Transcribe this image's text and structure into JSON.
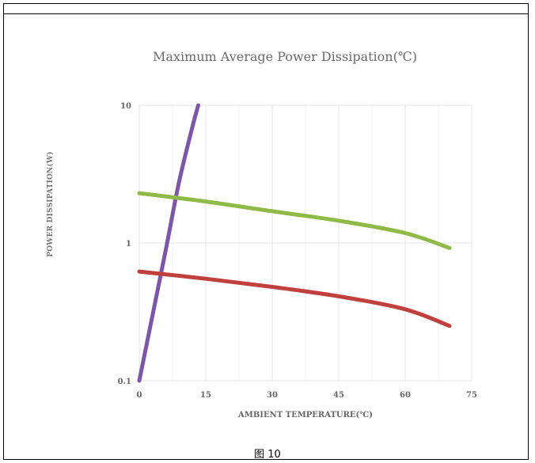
{
  "chart_data": {
    "type": "line",
    "title": "Maximum  Average Power Dissipation(℃)",
    "xlabel": "AMBIENT TEMPERATURE(℃)",
    "ylabel": "POWER DISSIPATION(W)",
    "x_ticks": [
      "0",
      "15",
      "30",
      "45",
      "60",
      "75"
    ],
    "y_ticks": [
      "0.1",
      "1",
      "10"
    ],
    "xlim": [
      0,
      75
    ],
    "ylim": [
      0.1,
      10
    ],
    "yscale": "log",
    "grid": true,
    "series": [
      {
        "color": "#7d56a8",
        "x": [
          0,
          3,
          6,
          9,
          12,
          13.3
        ],
        "y": [
          0.1,
          0.3,
          0.9,
          2.8,
          7.0,
          10.0
        ]
      },
      {
        "color": "#8fba47",
        "x": [
          0,
          15,
          30,
          45,
          60,
          70
        ],
        "y": [
          2.3,
          2.0,
          1.7,
          1.45,
          1.18,
          0.92
        ]
      },
      {
        "color": "#c0403d",
        "x": [
          0,
          15,
          30,
          45,
          60,
          70
        ],
        "y": [
          0.62,
          0.55,
          0.48,
          0.41,
          0.33,
          0.25
        ]
      }
    ]
  },
  "caption": "图 10"
}
